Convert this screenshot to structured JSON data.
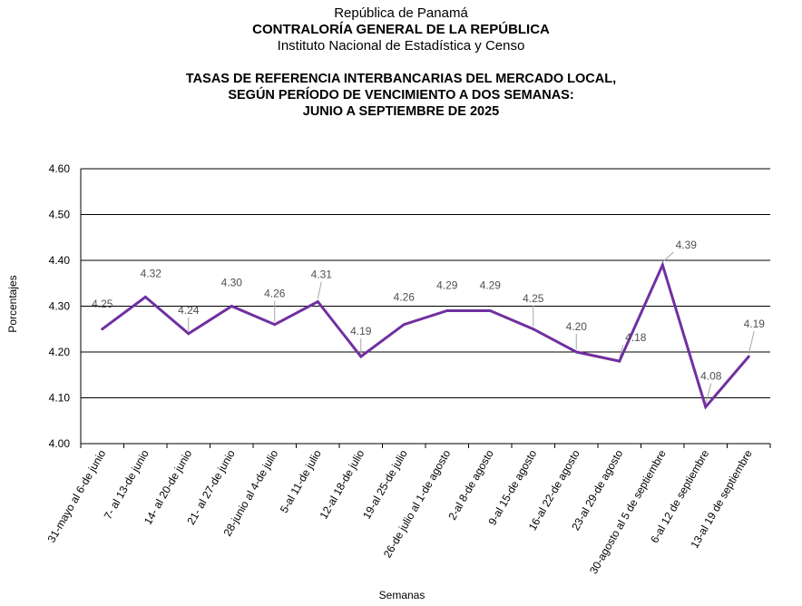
{
  "header": {
    "line1": "República de Panamá",
    "line2": "CONTRALORÍA GENERAL DE LA REPÚBLICA",
    "line3": "Instituto  Nacional de Estadística y Censo"
  },
  "title": {
    "line1": "TASAS DE REFERENCIA INTERBANCARIAS DEL MERCADO LOCAL,",
    "line2": "SEGÚN PERÍODO DE VENCIMIENTO A DOS SEMANAS:",
    "line3": "JUNIO A  SEPTIEMBRE DE 2025"
  },
  "colors": {
    "line": "#7030A0",
    "grid": "#000000",
    "leader": "#a6a6a6",
    "label": "#505050"
  },
  "chart_data": {
    "type": "line",
    "xlabel": "Semanas",
    "ylabel": "Porcentajes",
    "ylim": [
      4.0,
      4.6
    ],
    "yticks": [
      "4.00",
      "4.10",
      "4.20",
      "4.30",
      "4.40",
      "4.50",
      "4.60"
    ],
    "grid": true,
    "legend": "none",
    "categories": [
      "31-mayo al 6-de junio",
      "7- al 13-de junio",
      "14- al 20-de junio",
      "21- al 27-de junio",
      "28-junio al 4-de julio",
      "5-al 11-de julio",
      "12-al 18-de julio",
      "19-al 25-de julio",
      "26-de julio al 1-de agosto",
      "2-al 8-de agosto",
      "9-al 15-de agosto",
      "16-al 22-de agosto",
      "23-al 29-de agosto",
      "30-agosto al 5 de septiembre",
      "6-al 12 de septiembre",
      "13-al 19 de septiembre"
    ],
    "series": [
      {
        "values": [
          4.25,
          4.32,
          4.24,
          4.3,
          4.26,
          4.31,
          4.19,
          4.26,
          4.29,
          4.29,
          4.25,
          4.2,
          4.18,
          4.39,
          4.08,
          4.19
        ]
      }
    ],
    "data_labels": [
      "4.25",
      "4.32",
      "4.24",
      "4.30",
      "4.26",
      "4.31",
      "4.19",
      "4.26",
      "4.29",
      "4.29",
      "4.25",
      "4.20",
      "4.18",
      "4.39",
      "4.08",
      "4.19"
    ]
  }
}
